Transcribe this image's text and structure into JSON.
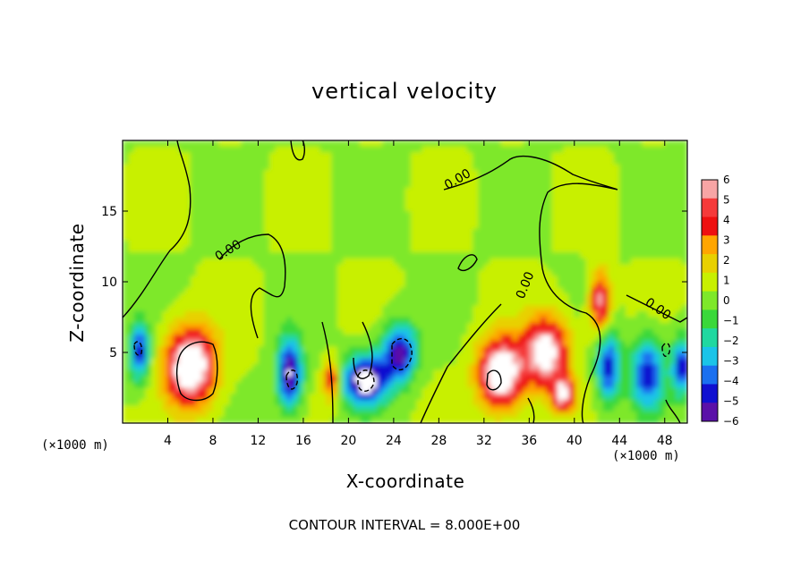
{
  "chart_data": {
    "type": "heatmap",
    "title": "vertical velocity",
    "xlabel": "X-coordinate",
    "ylabel": "Z-coordinate",
    "x_unit": "(×1000 m)",
    "xlim": [
      0,
      50
    ],
    "ylim": [
      0,
      20
    ],
    "x_ticks": [
      4,
      8,
      12,
      16,
      20,
      24,
      28,
      32,
      36,
      40,
      44,
      48
    ],
    "y_ticks": [
      5,
      10,
      15
    ],
    "contour_label": "0.00",
    "note": "CONTOUR INTERVAL = 8.000E+00",
    "colorbar": {
      "ticks": [
        6,
        5,
        4,
        3,
        2,
        1,
        0,
        -1,
        -2,
        -3,
        -4,
        -5,
        -6
      ],
      "colors": [
        "#f7a5a5",
        "#f53a3a",
        "#ee1010",
        "#ffa500",
        "#e8d000",
        "#c8f000",
        "#7ee82a",
        "#3ad83a",
        "#20d8a0",
        "#1ac4e8",
        "#1a70f0",
        "#1010d0",
        "#5a10a8"
      ]
    },
    "features": [
      {
        "x": 6,
        "z": 4,
        "w": 1.0,
        "sx": 2.2,
        "sz": 2.7
      },
      {
        "x": 1.5,
        "z": 5,
        "w": -0.7,
        "sx": 0.9,
        "sz": 2.0
      },
      {
        "x": 14.8,
        "z": 3.5,
        "w": -0.85,
        "sx": 1.1,
        "sz": 2.5
      },
      {
        "x": 18.5,
        "z": 3,
        "w": 0.6,
        "sx": 0.7,
        "sz": 1.4
      },
      {
        "x": 21.5,
        "z": 3,
        "w": -0.95,
        "sx": 2.0,
        "sz": 1.8
      },
      {
        "x": 24.5,
        "z": 5,
        "w": -0.8,
        "sx": 1.5,
        "sz": 2.0
      },
      {
        "x": 33.5,
        "z": 3.5,
        "w": 0.95,
        "sx": 2.0,
        "sz": 2.5
      },
      {
        "x": 37.5,
        "z": 5,
        "w": 0.85,
        "sx": 2.0,
        "sz": 2.5
      },
      {
        "x": 39,
        "z": 2,
        "w": 0.7,
        "sx": 1.0,
        "sz": 1.2
      },
      {
        "x": 42.3,
        "z": 8.5,
        "w": 0.7,
        "sx": 0.9,
        "sz": 2.2
      },
      {
        "x": 43,
        "z": 4,
        "w": -0.7,
        "sx": 1.0,
        "sz": 2.5
      },
      {
        "x": 46.5,
        "z": 3.5,
        "w": -0.7,
        "sx": 1.5,
        "sz": 2.5
      },
      {
        "x": 49.5,
        "z": 4,
        "w": -0.75,
        "sx": 0.8,
        "sz": 2.0
      }
    ]
  }
}
